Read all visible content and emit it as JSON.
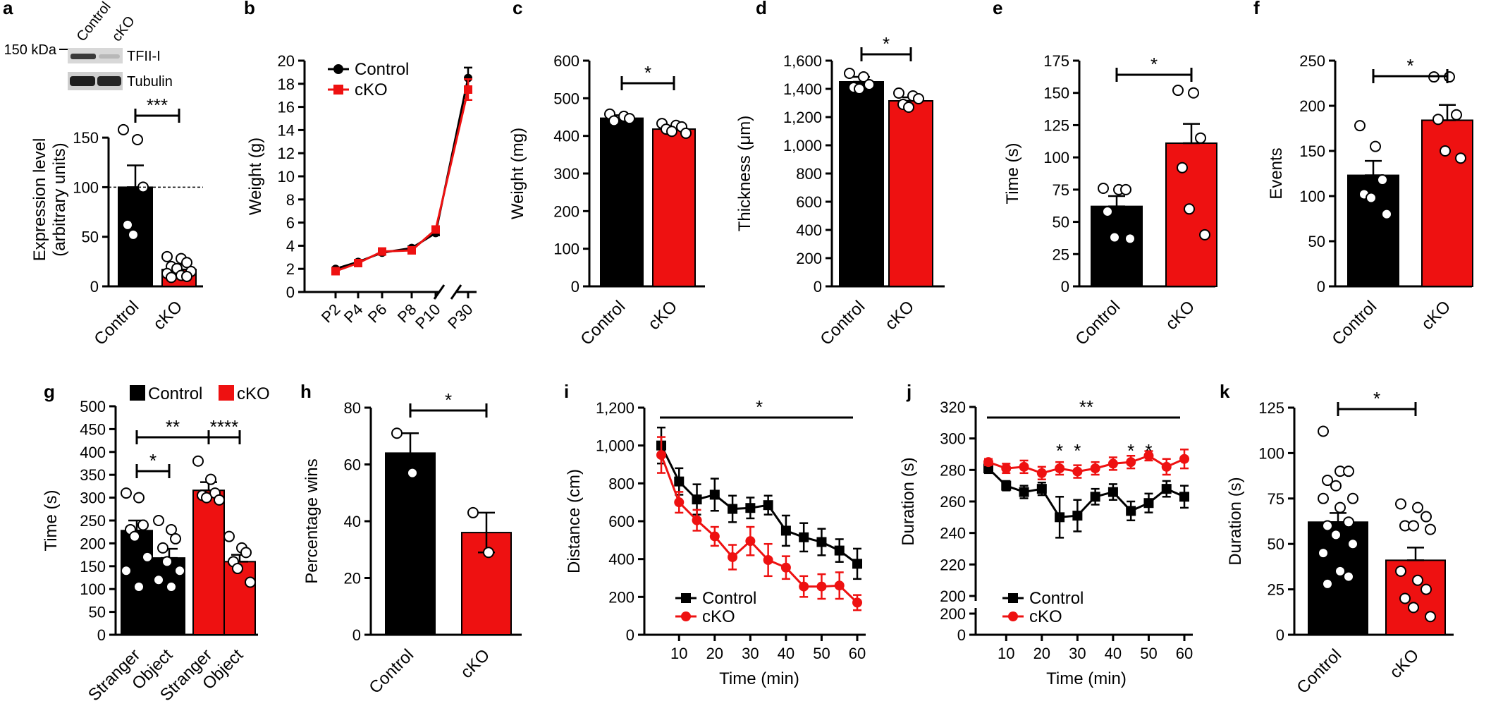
{
  "colors": {
    "control": "#000000",
    "cko": "#ee1111",
    "axis": "#000000"
  },
  "chart_data": [
    {
      "panel": "a",
      "type": "bar",
      "blot": {
        "size_marker": "150 kDa",
        "lanes": [
          "Control",
          "cKO"
        ],
        "bands": [
          "TFII-I",
          "Tubulin"
        ]
      },
      "categories": [
        "Control",
        "cKO"
      ],
      "values": [
        100,
        17
      ],
      "errors": [
        22,
        5
      ],
      "points": [
        [
          158,
          148,
          100,
          62,
          52
        ],
        [
          30,
          28,
          24,
          20,
          18,
          15,
          13,
          11,
          10,
          9
        ]
      ],
      "ylabel": [
        "Expression level",
        "(arbitrary units)"
      ],
      "ylim": [
        0,
        175
      ],
      "yticks": [
        0,
        50,
        100,
        150
      ],
      "dashed_reference": 100,
      "significance": [
        {
          "from": 0,
          "to": 1,
          "label": "***"
        }
      ]
    },
    {
      "panel": "b",
      "type": "line",
      "x": [
        "P2",
        "P4",
        "P6",
        "P8",
        "P10",
        "P30"
      ],
      "series": [
        {
          "name": "Control",
          "values": [
            2.0,
            2.6,
            3.4,
            3.8,
            5.1,
            18.5
          ],
          "errors": [
            0.1,
            0.1,
            0.15,
            0.15,
            0.2,
            0.9
          ]
        },
        {
          "name": "cKO",
          "values": [
            1.8,
            2.5,
            3.5,
            3.6,
            5.4,
            17.5
          ],
          "errors": [
            0.1,
            0.1,
            0.15,
            0.2,
            0.2,
            0.9
          ]
        }
      ],
      "ylabel": "Weight (g)",
      "ylim": [
        0,
        20
      ],
      "yticks": [
        0,
        2,
        4,
        6,
        8,
        10,
        12,
        14,
        16,
        18,
        20
      ],
      "legend": "top-left",
      "axis_break_before": "P30"
    },
    {
      "panel": "c",
      "type": "bar",
      "categories": [
        "Control",
        "cKO"
      ],
      "values": [
        447,
        418
      ],
      "errors": [
        8,
        8
      ],
      "points": [
        [
          458,
          452,
          446,
          440
        ],
        [
          433,
          428,
          424,
          418,
          412,
          407
        ]
      ],
      "ylabel": "Weight (mg)",
      "ylim": [
        0,
        600
      ],
      "yticks": [
        0,
        100,
        200,
        300,
        400,
        500,
        600
      ],
      "significance": [
        {
          "from": 0,
          "to": 1,
          "label": "*"
        }
      ]
    },
    {
      "panel": "d",
      "type": "bar",
      "categories": [
        "Control",
        "cKO"
      ],
      "values": [
        1450,
        1315
      ],
      "errors": [
        35,
        25
      ],
      "points": [
        [
          1510,
          1485,
          1430,
          1410,
          1400
        ],
        [
          1370,
          1350,
          1330,
          1290,
          1270
        ]
      ],
      "ylabel": "Thickness (μm)",
      "ylim": [
        0,
        1600
      ],
      "yticks": [
        0,
        200,
        400,
        600,
        800,
        1000,
        1200,
        1400,
        1600
      ],
      "yticklabels": [
        "0",
        "200",
        "400",
        "600",
        "800",
        "1,000",
        "1,200",
        "1,400",
        "1,600"
      ],
      "significance": [
        {
          "from": 0,
          "to": 1,
          "label": "*"
        }
      ]
    },
    {
      "panel": "e",
      "type": "bar",
      "categories": [
        "Control",
        "cKO"
      ],
      "values": [
        62,
        111
      ],
      "errors": [
        8,
        15
      ],
      "points": [
        [
          76,
          75,
          75,
          58,
          38,
          37
        ],
        [
          152,
          150,
          115,
          92,
          60,
          40
        ]
      ],
      "ylabel": "Time (s)",
      "ylim": [
        0,
        175
      ],
      "yticks": [
        0,
        25,
        50,
        75,
        100,
        125,
        150,
        175
      ],
      "significance": [
        {
          "from": 0,
          "to": 1,
          "label": "*"
        }
      ]
    },
    {
      "panel": "f",
      "type": "bar",
      "categories": [
        "Control",
        "cKO"
      ],
      "values": [
        123,
        184
      ],
      "errors": [
        16,
        17
      ],
      "points": [
        [
          178,
          155,
          118,
          102,
          98,
          80
        ],
        [
          232,
          232,
          190,
          185,
          150,
          142
        ]
      ],
      "ylabel": "Events",
      "ylim": [
        0,
        250
      ],
      "yticks": [
        0,
        50,
        100,
        150,
        200,
        250
      ],
      "significance": [
        {
          "from": 0,
          "to": 1,
          "label": "*"
        }
      ]
    },
    {
      "panel": "g",
      "type": "bar",
      "categories": [
        "Stranger",
        "Object",
        "Stranger",
        "Object"
      ],
      "groups": [
        "Control",
        "Control",
        "cKO",
        "cKO"
      ],
      "values": [
        228,
        168,
        316,
        160
      ],
      "errors": [
        22,
        20,
        18,
        15
      ],
      "points": [
        [
          310,
          300,
          240,
          230,
          215,
          170,
          140,
          105
        ],
        [
          250,
          230,
          210,
          190,
          160,
          140,
          120,
          105
        ],
        [
          380,
          340,
          310,
          305,
          300,
          295
        ],
        [
          215,
          190,
          180,
          160,
          145,
          115
        ]
      ],
      "ylabel": "Time (s)",
      "ylim": [
        0,
        500
      ],
      "yticks": [
        0,
        50,
        100,
        150,
        200,
        250,
        300,
        350,
        400,
        450,
        500
      ],
      "legend": [
        "Control",
        "cKO"
      ],
      "significance": [
        {
          "from": 0,
          "to": 1,
          "label": "*"
        },
        {
          "from": 0,
          "to": 2,
          "label": "**"
        },
        {
          "from": 2,
          "to": 3,
          "label": "****"
        }
      ]
    },
    {
      "panel": "h",
      "type": "bar",
      "categories": [
        "Control",
        "cKO"
      ],
      "values": [
        64,
        36
      ],
      "errors": [
        7,
        7
      ],
      "points": [
        [
          71,
          57
        ],
        [
          43,
          29
        ]
      ],
      "ylabel": "Percentage wins",
      "ylim": [
        0,
        80
      ],
      "yticks": [
        0,
        20,
        40,
        60,
        80
      ],
      "significance": [
        {
          "from": 0,
          "to": 1,
          "label": "*"
        }
      ]
    },
    {
      "panel": "i",
      "type": "line",
      "x": [
        5,
        10,
        15,
        20,
        25,
        30,
        35,
        40,
        45,
        50,
        55,
        60
      ],
      "series": [
        {
          "name": "Control",
          "values": [
            1000,
            810,
            715,
            740,
            665,
            670,
            685,
            550,
            515,
            490,
            445,
            375
          ],
          "errors": [
            95,
            70,
            80,
            85,
            70,
            55,
            50,
            80,
            75,
            70,
            60,
            80
          ]
        },
        {
          "name": "cKO",
          "values": [
            950,
            700,
            605,
            520,
            410,
            495,
            395,
            355,
            255,
            255,
            260,
            170
          ],
          "errors": [
            95,
            55,
            55,
            50,
            65,
            75,
            85,
            60,
            55,
            65,
            70,
            40
          ]
        }
      ],
      "xlabel": "Time (min)",
      "ylabel": "Distance (cm)",
      "ylim": [
        0,
        1200
      ],
      "yticks": [
        0,
        200,
        400,
        600,
        800,
        1000,
        1200
      ],
      "yticklabels": [
        "0",
        "200",
        "400",
        "600",
        "800",
        "1,000",
        "1,200"
      ],
      "xticks": [
        10,
        20,
        30,
        40,
        50,
        60
      ],
      "legend": "bottom-left",
      "significance_line": {
        "from": 5,
        "to": 60,
        "label": "*"
      }
    },
    {
      "panel": "j",
      "type": "line",
      "x": [
        5,
        10,
        15,
        20,
        25,
        30,
        35,
        40,
        45,
        50,
        55,
        60
      ],
      "series": [
        {
          "name": "Control",
          "values": [
            281,
            270,
            266,
            268,
            250,
            251,
            263,
            266,
            254,
            259,
            268,
            263
          ],
          "errors": [
            3,
            3,
            4,
            4,
            13,
            10,
            5,
            5,
            6,
            6,
            5,
            7
          ]
        },
        {
          "name": "cKO",
          "values": [
            285,
            281,
            282,
            278,
            281,
            279,
            281,
            284,
            285,
            289,
            282,
            287
          ],
          "errors": [
            2,
            3,
            4,
            4,
            4,
            4,
            4,
            4,
            4,
            3,
            5,
            6
          ]
        }
      ],
      "xlabel": "Time (min)",
      "ylabel": "Duration (s)",
      "ylim": [
        200,
        320
      ],
      "yticks": [
        200,
        220,
        240,
        260,
        280,
        300,
        320
      ],
      "axis_break_ticks": [
        "0",
        "200"
      ],
      "xticks": [
        10,
        20,
        30,
        40,
        50,
        60
      ],
      "legend": "bottom-left",
      "significance_line": {
        "from": 5,
        "to": 60,
        "label": "**"
      },
      "point_significance": [
        {
          "x": 25,
          "label": "*"
        },
        {
          "x": 30,
          "label": "*"
        },
        {
          "x": 45,
          "label": "*"
        },
        {
          "x": 50,
          "label": "*"
        }
      ]
    },
    {
      "panel": "k",
      "type": "bar",
      "categories": [
        "Control",
        "cKO"
      ],
      "values": [
        62,
        41
      ],
      "errors": [
        5,
        7
      ],
      "points": [
        [
          112,
          90,
          90,
          85,
          82,
          75,
          75,
          70,
          62,
          60,
          55,
          50,
          45,
          35,
          32,
          28
        ],
        [
          72,
          70,
          65,
          60,
          60,
          58,
          35,
          30,
          25,
          20,
          15,
          10
        ]
      ],
      "ylabel": "Duration (s)",
      "ylim": [
        0,
        125
      ],
      "yticks": [
        0,
        25,
        50,
        75,
        100,
        125
      ],
      "significance": [
        {
          "from": 0,
          "to": 1,
          "label": "*"
        }
      ]
    }
  ]
}
